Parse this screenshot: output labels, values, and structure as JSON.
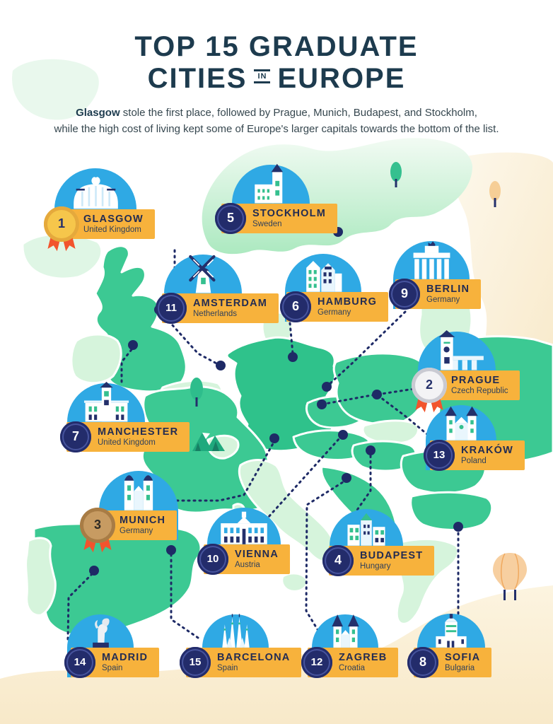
{
  "title": {
    "line1": "TOP 15 GRADUATE",
    "line2_left": "CITIES",
    "in_word": "IN",
    "line2_right": "EUROPE"
  },
  "subtitle": {
    "lead": "Glasgow",
    "line1_rest": " stole the first place, followed by Prague, Munich, Budapest, and Stockholm,",
    "line2": "while the high cost of living kept some of Europe's larger capitals towards the bottom of the list."
  },
  "colors": {
    "ink": "#1D3B4E",
    "label_orange": "#F7B23C",
    "dome_blue": "#2FA9E4",
    "badge_navy": "#232C6B",
    "map_teal": "#3CC993",
    "map_light_green": "#D6F4DC",
    "map_cream": "#F8E9C9",
    "connector_navy": "#1E2A66",
    "medal_gold": "#F6C64B",
    "medal_silver": "#F3F3F5",
    "medal_bronze": "#C79B62",
    "ribbon_red": "#F2542D"
  },
  "cities": [
    {
      "rank": "1",
      "name": "GLASGOW",
      "country": "United Kingdom",
      "badge": "gold",
      "icon": "dome-building-icon"
    },
    {
      "rank": "5",
      "name": "STOCKHOLM",
      "country": "Sweden",
      "badge": "navy",
      "icon": "church-tower-icon"
    },
    {
      "rank": "11",
      "name": "AMSTERDAM",
      "country": "Netherlands",
      "badge": "navy",
      "icon": "windmill-icon"
    },
    {
      "rank": "6",
      "name": "HAMBURG",
      "country": "Germany",
      "badge": "navy",
      "icon": "row-houses-icon"
    },
    {
      "rank": "9",
      "name": "BERLIN",
      "country": "Germany",
      "badge": "navy",
      "icon": "brandenburg-gate-icon"
    },
    {
      "rank": "2",
      "name": "PRAGUE",
      "country": "Czech Republic",
      "badge": "silver",
      "icon": "bridge-tower-icon"
    },
    {
      "rank": "7",
      "name": "MANCHESTER",
      "country": "United Kingdom",
      "badge": "navy",
      "icon": "town-hall-icon"
    },
    {
      "rank": "13",
      "name": "KRAKÓW",
      "country": "Poland",
      "badge": "navy",
      "icon": "basilica-icon"
    },
    {
      "rank": "3",
      "name": "MUNICH",
      "country": "Germany",
      "badge": "bronze",
      "icon": "twin-domes-church-icon"
    },
    {
      "rank": "10",
      "name": "VIENNA",
      "country": "Austria",
      "badge": "navy",
      "icon": "palace-icon"
    },
    {
      "rank": "4",
      "name": "BUDAPEST",
      "country": "Hungary",
      "badge": "navy",
      "icon": "parliament-icon"
    },
    {
      "rank": "14",
      "name": "MADRID",
      "country": "Spain",
      "badge": "navy",
      "icon": "bear-statue-icon"
    },
    {
      "rank": "15",
      "name": "BARCELONA",
      "country": "Spain",
      "badge": "navy",
      "icon": "sagrada-familia-icon"
    },
    {
      "rank": "12",
      "name": "ZAGREB",
      "country": "Croatia",
      "badge": "navy",
      "icon": "twin-spires-cathedral-icon"
    },
    {
      "rank": "8",
      "name": "SOFIA",
      "country": "Bulgaria",
      "badge": "navy",
      "icon": "domed-cathedral-icon"
    }
  ]
}
